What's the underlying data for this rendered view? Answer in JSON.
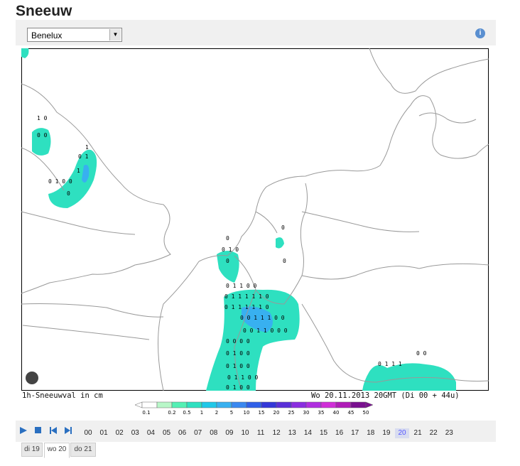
{
  "header": {
    "title": "Sneeuw",
    "region_select": "Benelux"
  },
  "map": {
    "caption_left": "1h-Sneeuwval in cm",
    "caption_right": "Wo 20.11.2013 20GMT (Di 00 + 44u)",
    "labels": [
      "1 0",
      "0 0",
      "1",
      "0 1",
      "1",
      "0 1 0 0",
      "0",
      "0",
      "0 1 0",
      "0",
      "0",
      "0 1 1 0 0",
      "0 1 1 1 1 1 0",
      "0 1 1 1 1 1 0",
      "0 0 1 1 1 0 0",
      "0 0 1 1 0 0 0",
      "0 0 0 0",
      "0 1 0 0",
      "0 1 0 0",
      "0 1 1 0 0",
      "0 1 0 0",
      "0",
      "0 0",
      "0 1 1 1"
    ]
  },
  "legend": {
    "labels": [
      "0.1",
      "0.2",
      "0.5",
      "1",
      "2",
      "5",
      "10",
      "15",
      "20",
      "25",
      "30",
      "35",
      "40",
      "45",
      "50"
    ],
    "colors": [
      "#ffffff",
      "#b8f7c8",
      "#54f0b4",
      "#2ee0c0",
      "#20c8e8",
      "#38b0f0",
      "#3a88f0",
      "#3060e8",
      "#3438d8",
      "#5a30d8",
      "#8a2ee0",
      "#b02ee0",
      "#d02ed8",
      "#b01cb8",
      "#7a1090"
    ]
  },
  "controls": {
    "hours": [
      "00",
      "01",
      "02",
      "03",
      "04",
      "05",
      "06",
      "07",
      "08",
      "09",
      "10",
      "11",
      "12",
      "13",
      "14",
      "15",
      "16",
      "17",
      "18",
      "19",
      "20",
      "21",
      "22",
      "23"
    ],
    "selected_hour_index": 20,
    "days": [
      "di 19",
      "wo 20",
      "do 21"
    ],
    "selected_day_index": 1
  }
}
